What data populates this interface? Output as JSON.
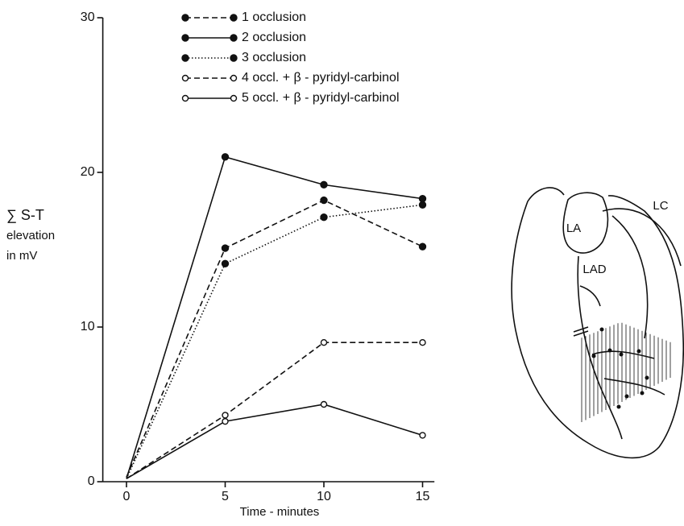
{
  "chart_data": {
    "type": "line",
    "ylabel": [
      "∑ S-T",
      "elevation",
      "in mV"
    ],
    "xlabel": "Time - minutes",
    "xlim": [
      -1.2,
      15.6
    ],
    "xticks": [
      0,
      5,
      10,
      15
    ],
    "ylim": [
      0,
      30
    ],
    "yticks": [
      0,
      10,
      20,
      30
    ],
    "x": [
      0,
      5,
      10,
      15
    ],
    "series": [
      {
        "name": "1 occlusion",
        "color": "#111111",
        "line_style": "dashed",
        "marker": "filled",
        "values": [
          0.3,
          15.1,
          18.2,
          15.2
        ]
      },
      {
        "name": "2 occlusion",
        "color": "#111111",
        "line_style": "solid",
        "marker": "filled",
        "values": [
          0.2,
          21.0,
          19.2,
          18.3
        ]
      },
      {
        "name": "3 occlusion",
        "color": "#111111",
        "line_style": "dotted",
        "marker": "filled",
        "values": [
          0.2,
          14.1,
          17.1,
          17.9
        ]
      },
      {
        "name": "4 occl. + β - pyridyl-carbinol",
        "color": "#111111",
        "line_style": "dashed",
        "marker": "open",
        "values": [
          0.2,
          4.3,
          9.0,
          9.0
        ]
      },
      {
        "name": "5 occl. + β - pyridyl-carbinol",
        "color": "#111111",
        "line_style": "solid",
        "marker": "open",
        "values": [
          0.2,
          3.9,
          5.0,
          3.0
        ]
      }
    ],
    "legend": "top-center"
  },
  "heart_diagram": {
    "labels": [
      "LA",
      "LAD",
      "LC"
    ]
  }
}
